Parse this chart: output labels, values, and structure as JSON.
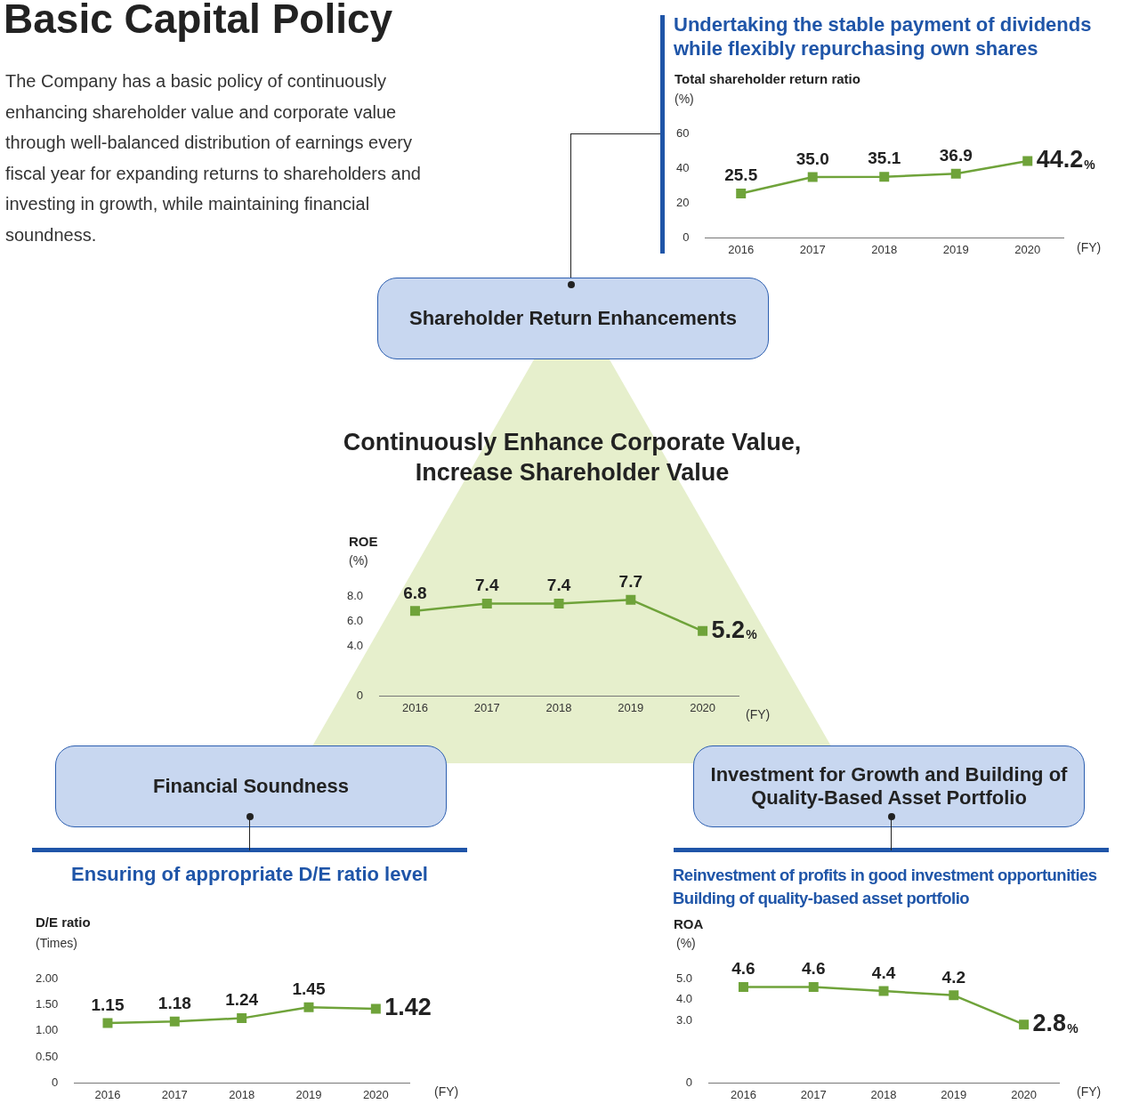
{
  "chart_data": [
    {
      "type": "other",
      "title": "Basic Capital Policy",
      "subtitle": "The Company has a basic policy of continuously enhancing shareholder value and corporate value through well-balanced distribution of earnings every fiscal year for expanding returns to shareholders and investing in growth, while maintaining financial soundness.",
      "annotations": [
        "Shareholder Return Enhancements",
        "Continuously Enhance Corporate Value, Increase Shareholder Value",
        "Financial Soundness",
        "Investment for Growth and Building of Quality-Based Asset Portfolio"
      ]
    },
    {
      "type": "line",
      "title": "Undertaking the stable payment of dividends while flexibly repurchasing own shares",
      "subtitle": "Total shareholder return ratio",
      "ylabel": "(%)",
      "xlabel": "(FY)",
      "categories": [
        "2016",
        "2017",
        "2018",
        "2019",
        "2020"
      ],
      "color": "#6fa33a",
      "marker": "square",
      "line_style": "solid",
      "grid": false,
      "legend": false,
      "values": [
        25.5,
        35.0,
        35.1,
        36.9,
        44.2
      ],
      "value_labels": [
        "25.5",
        "35.0",
        "35.1",
        "36.9",
        "44.2%"
      ],
      "ylim": [
        0,
        60
      ],
      "yticks": [
        0,
        20,
        40,
        60
      ]
    },
    {
      "type": "line",
      "title": "ROE",
      "ylabel": "(%)",
      "xlabel": "(FY)",
      "categories": [
        "2016",
        "2017",
        "2018",
        "2019",
        "2020"
      ],
      "color": "#6fa33a",
      "marker": "square",
      "line_style": "solid",
      "grid": false,
      "legend": false,
      "values": [
        6.8,
        7.4,
        7.4,
        7.7,
        5.2
      ],
      "value_labels": [
        "6.8",
        "7.4",
        "7.4",
        "7.7",
        "5.2%"
      ],
      "ylim": [
        0,
        8
      ],
      "yticks": [
        0,
        {
          "value": 4,
          "label": "4.0"
        },
        {
          "value": 6,
          "label": "6.0"
        },
        {
          "value": 8,
          "label": "8.0"
        }
      ]
    },
    {
      "type": "line",
      "title": "Ensuring of appropriate D/E ratio level",
      "subtitle": "D/E ratio",
      "ylabel": "(Times)",
      "xlabel": "(FY)",
      "categories": [
        "2016",
        "2017",
        "2018",
        "2019",
        "2020"
      ],
      "color": "#6fa33a",
      "marker": "square",
      "line_style": "solid",
      "grid": false,
      "legend": false,
      "values": [
        1.15,
        1.18,
        1.24,
        1.45,
        1.42
      ],
      "value_labels": [
        "1.15",
        "1.18",
        "1.24",
        "1.45",
        "1.42"
      ],
      "ylim": [
        0,
        2
      ],
      "yticks": [
        0,
        {
          "value": 0.5,
          "label": "0.50"
        },
        {
          "value": 1,
          "label": "1.00"
        },
        {
          "value": 1.5,
          "label": "1.50"
        },
        {
          "value": 2,
          "label": "2.00"
        }
      ]
    },
    {
      "type": "line",
      "title": "Reinvestment of profits in good investment opportunities Building of quality-based asset portfolio",
      "subtitle": "ROA",
      "ylabel": "(%)",
      "xlabel": "(FY)",
      "categories": [
        "2016",
        "2017",
        "2018",
        "2019",
        "2020"
      ],
      "color": "#6fa33a",
      "marker": "square",
      "line_style": "solid",
      "grid": false,
      "legend": false,
      "values": [
        4.6,
        4.6,
        4.4,
        4.2,
        2.8
      ],
      "value_labels": [
        "4.6",
        "4.6",
        "4.4",
        "4.2",
        "2.8%"
      ],
      "ylim": [
        0,
        5
      ],
      "yticks": [
        0,
        {
          "value": 3,
          "label": "3.0"
        },
        {
          "value": 4,
          "label": "4.0"
        },
        {
          "value": 5,
          "label": "5.0"
        }
      ]
    }
  ]
}
